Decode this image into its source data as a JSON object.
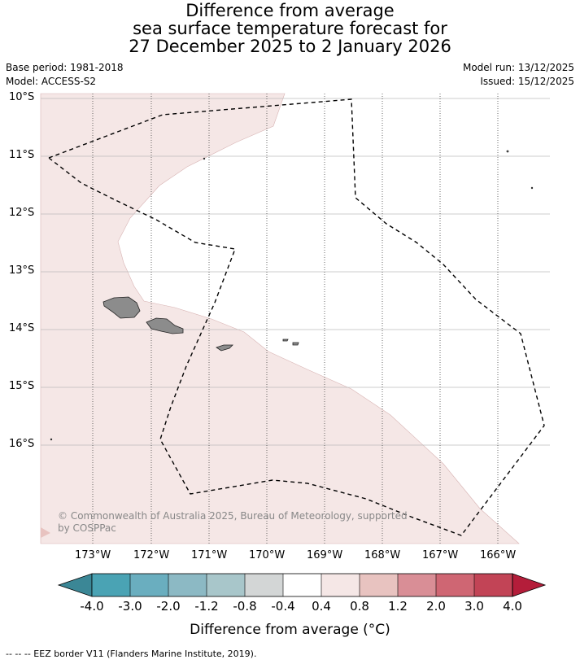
{
  "title": {
    "line1": "Difference from average",
    "line2": "sea surface temperature forecast for",
    "line3": "27 December 2025 to 2 January 2026"
  },
  "meta": {
    "base_period": "Base period: 1981-2018",
    "model": "Model: ACCESS-S2",
    "model_run": "Model run: 13/12/2025",
    "issued": "Issued: 15/12/2025"
  },
  "map": {
    "lat_labels": [
      "10°S",
      "11°S",
      "12°S",
      "13°S",
      "14°S",
      "15°S",
      "16°S"
    ],
    "lon_labels": [
      "173°W",
      "172°W",
      "171°W",
      "170°W",
      "169°W",
      "168°W",
      "167°W",
      "166°W"
    ],
    "copyright": "© Commonwealth of Australia 2025, Bureau of Meteorology, supported by COSPPac",
    "colors": {
      "anomaly_04_08": "#f5e7e6",
      "land": "#8c8c8c",
      "eez": "#000000"
    }
  },
  "colorbar": {
    "title": "Difference from average (°C)",
    "labels": [
      "-4.0",
      "-3.0",
      "-2.0",
      "-1.2",
      "-0.8",
      "-0.4",
      "0.4",
      "0.8",
      "1.2",
      "2.0",
      "3.0",
      "4.0"
    ],
    "colors": [
      "#3b8796",
      "#4aa3b4",
      "#6aaebf",
      "#8cb9c4",
      "#a8c6ca",
      "#d3d6d6",
      "#ffffff",
      "#f5e7e6",
      "#e8c3c0",
      "#d98e96",
      "#cf6673",
      "#c24456",
      "#b41d3a"
    ]
  },
  "footer": "-- -- -- EEZ border V11 (Flanders Marine Institute, 2019)."
}
